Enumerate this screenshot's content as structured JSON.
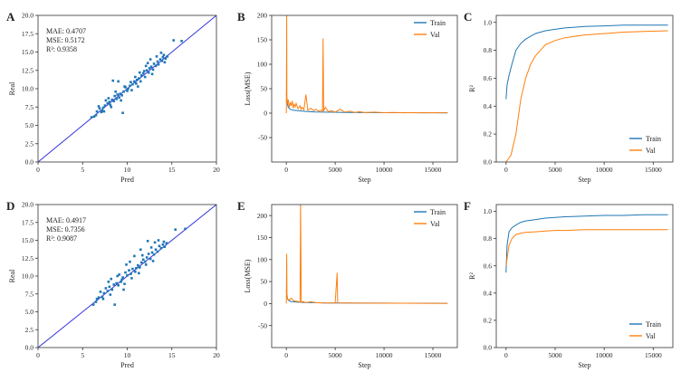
{
  "colors": {
    "train": "#1f77b4",
    "val": "#ff7f0e",
    "fit_line": "#3333dd",
    "points": "#1f77b4"
  },
  "chart_data": [
    {
      "panel": "A",
      "type": "scatter",
      "xlabel": "Pred",
      "ylabel": "Real",
      "xlim": [
        0,
        20
      ],
      "ylim": [
        0,
        20
      ],
      "xticks": [
        0,
        5,
        10,
        15,
        20
      ],
      "yticks": [
        0.0,
        2.5,
        5.0,
        7.5,
        10.0,
        12.5,
        15.0,
        17.5,
        20.0
      ],
      "ytick_labels": [
        "0.0",
        "2.5",
        "5.0",
        "7.5",
        "10.0",
        "12.5",
        "15.0",
        "17.5",
        "20.0"
      ],
      "stats": [
        "MAE: 0.4707",
        "MSE: 0.5172",
        "R²: 0.9358"
      ],
      "fit_line": [
        [
          0,
          0
        ],
        [
          20,
          20
        ]
      ],
      "points": [
        [
          6.0,
          6.1
        ],
        [
          6.3,
          6.2
        ],
        [
          6.6,
          6.9
        ],
        [
          6.9,
          7.3
        ],
        [
          7.1,
          6.8
        ],
        [
          7.3,
          7.4
        ],
        [
          7.5,
          7.7
        ],
        [
          7.6,
          8.4
        ],
        [
          7.8,
          8.0
        ],
        [
          8.0,
          8.2
        ],
        [
          8.1,
          7.8
        ],
        [
          8.3,
          8.5
        ],
        [
          8.4,
          11.1
        ],
        [
          8.5,
          8.3
        ],
        [
          8.6,
          9.0
        ],
        [
          8.8,
          8.6
        ],
        [
          9.0,
          11.0
        ],
        [
          9.1,
          8.8
        ],
        [
          9.2,
          9.3
        ],
        [
          9.4,
          9.1
        ],
        [
          9.5,
          6.7
        ],
        [
          9.6,
          9.6
        ],
        [
          9.8,
          10.2
        ],
        [
          10.0,
          9.7
        ],
        [
          10.1,
          10.0
        ],
        [
          10.3,
          10.4
        ],
        [
          10.5,
          9.8
        ],
        [
          10.6,
          10.6
        ],
        [
          10.8,
          11.0
        ],
        [
          11.0,
          10.7
        ],
        [
          11.1,
          11.2
        ],
        [
          11.3,
          11.4
        ],
        [
          11.5,
          11.0
        ],
        [
          11.6,
          11.8
        ],
        [
          11.8,
          12.1
        ],
        [
          12.0,
          11.6
        ],
        [
          12.2,
          12.5
        ],
        [
          12.4,
          12.2
        ],
        [
          12.5,
          12.8
        ],
        [
          12.7,
          13.0
        ],
        [
          12.9,
          12.6
        ],
        [
          13.0,
          13.4
        ],
        [
          13.2,
          13.1
        ],
        [
          13.4,
          13.7
        ],
        [
          13.5,
          13.3
        ],
        [
          13.7,
          14.0
        ],
        [
          13.9,
          13.8
        ],
        [
          14.0,
          14.3
        ],
        [
          14.1,
          14.6
        ],
        [
          14.3,
          14.1
        ],
        [
          14.5,
          14.4
        ],
        [
          7.2,
          7.0
        ],
        [
          8.9,
          9.2
        ],
        [
          10.4,
          10.9
        ],
        [
          11.9,
          12.4
        ],
        [
          12.6,
          14.0
        ],
        [
          13.8,
          14.9
        ],
        [
          15.2,
          16.6
        ],
        [
          16.1,
          16.5
        ],
        [
          9.3,
          8.4
        ],
        [
          11.2,
          10.3
        ],
        [
          12.8,
          12.0
        ],
        [
          7.9,
          8.7
        ],
        [
          6.8,
          7.6
        ],
        [
          10.9,
          11.6
        ],
        [
          12.3,
          13.5
        ],
        [
          13.3,
          14.4
        ],
        [
          8.7,
          9.6
        ],
        [
          7.4,
          6.9
        ],
        [
          9.7,
          10.3
        ],
        [
          11.4,
          12.2
        ],
        [
          12.1,
          13.1
        ],
        [
          14.2,
          13.6
        ],
        [
          6.5,
          6.4
        ],
        [
          8.2,
          7.5
        ]
      ]
    },
    {
      "panel": "B",
      "type": "line",
      "xlabel": "Step",
      "ylabel": "Loss(MSE)",
      "xlim": [
        -1500,
        17500
      ],
      "ylim": [
        -100,
        200
      ],
      "xticks": [
        0,
        5000,
        10000,
        15000
      ],
      "yticks": [
        -50,
        0,
        50,
        100,
        150,
        200
      ],
      "legend": "top-right",
      "series": [
        {
          "name": "Train",
          "x": [
            0,
            100,
            200,
            400,
            700,
            1200,
            2000,
            3000,
            4000,
            6000,
            8000,
            10000,
            12000,
            14000,
            16500
          ],
          "y": [
            40,
            20,
            12,
            8,
            6,
            5,
            3.5,
            2.5,
            2,
            1.5,
            1.2,
            1,
            0.9,
            0.8,
            0.7
          ]
        },
        {
          "name": "Val",
          "x": [
            0,
            40,
            60,
            120,
            200,
            300,
            400,
            500,
            600,
            700,
            800,
            900,
            1000,
            1200,
            1400,
            1500,
            1600,
            1800,
            2000,
            2200,
            2500,
            2800,
            3000,
            3300,
            3600,
            3700,
            3760,
            3820,
            4000,
            4300,
            4600,
            5000,
            5500,
            6000,
            6500,
            7000,
            7500,
            8000,
            9000,
            10000,
            11000,
            12000,
            13000,
            14000,
            15000,
            16500
          ],
          "y": [
            0,
            210,
            30,
            20,
            28,
            12,
            22,
            15,
            25,
            10,
            18,
            13,
            20,
            9,
            15,
            8,
            12,
            7,
            38,
            6,
            10,
            5,
            8,
            4,
            6,
            3,
            153,
            4,
            12,
            3,
            5,
            2,
            8,
            2,
            4,
            1.5,
            3,
            1.2,
            2,
            1,
            1.5,
            0.8,
            1.2,
            0.7,
            1,
            0.6
          ]
        }
      ]
    },
    {
      "panel": "C",
      "type": "line",
      "xlabel": "Step",
      "ylabel": "R²",
      "xlim": [
        -1000,
        17000
      ],
      "ylim": [
        0,
        1.05
      ],
      "xticks": [
        0,
        5000,
        10000,
        15000
      ],
      "yticks": [
        0.0,
        0.2,
        0.4,
        0.6,
        0.8,
        1.0
      ],
      "ytick_labels": [
        "0.0",
        "0.2",
        "0.4",
        "0.6",
        "0.8",
        "1.0"
      ],
      "legend": "bottom-right",
      "series": [
        {
          "name": "Train",
          "x": [
            0,
            100,
            300,
            600,
            1000,
            1500,
            2000,
            3000,
            4000,
            5000,
            6000,
            8000,
            10000,
            12000,
            14000,
            16500
          ],
          "y": [
            0.45,
            0.55,
            0.62,
            0.7,
            0.8,
            0.85,
            0.88,
            0.92,
            0.94,
            0.95,
            0.96,
            0.97,
            0.975,
            0.98,
            0.98,
            0.98
          ]
        },
        {
          "name": "Val",
          "x": [
            0,
            500,
            1000,
            1500,
            2000,
            2500,
            3000,
            3500,
            4000,
            5000,
            6000,
            7000,
            8000,
            10000,
            12000,
            14000,
            16500
          ],
          "y": [
            0.0,
            0.05,
            0.2,
            0.45,
            0.6,
            0.7,
            0.76,
            0.8,
            0.84,
            0.87,
            0.89,
            0.9,
            0.91,
            0.92,
            0.93,
            0.935,
            0.94
          ]
        }
      ]
    },
    {
      "panel": "D",
      "type": "scatter",
      "xlabel": "Pred",
      "ylabel": "Real",
      "xlim": [
        0,
        20
      ],
      "ylim": [
        0,
        20
      ],
      "xticks": [
        0,
        5,
        10,
        15,
        20
      ],
      "yticks": [
        0.0,
        2.5,
        5.0,
        7.5,
        10.0,
        12.5,
        15.0,
        17.5,
        20.0
      ],
      "ytick_labels": [
        "0.0",
        "2.5",
        "5.0",
        "7.5",
        "10.0",
        "12.5",
        "15.0",
        "17.5",
        "20.0"
      ],
      "stats": [
        "MAE: 0.4917",
        "MSE: 0.7356",
        "R²: 0.9087"
      ],
      "fit_line": [
        [
          0,
          0
        ],
        [
          20,
          20
        ]
      ],
      "points": [
        [
          6.2,
          6.0
        ],
        [
          6.5,
          6.4
        ],
        [
          6.8,
          7.0
        ],
        [
          7.0,
          7.8
        ],
        [
          7.2,
          7.1
        ],
        [
          7.4,
          7.6
        ],
        [
          7.6,
          8.3
        ],
        [
          7.8,
          7.9
        ],
        [
          8.0,
          8.5
        ],
        [
          8.2,
          9.6
        ],
        [
          8.3,
          8.1
        ],
        [
          8.5,
          8.8
        ],
        [
          8.6,
          6.0
        ],
        [
          8.8,
          9.0
        ],
        [
          9.0,
          8.7
        ],
        [
          9.1,
          10.2
        ],
        [
          9.3,
          9.2
        ],
        [
          9.5,
          9.8
        ],
        [
          9.6,
          8.1
        ],
        [
          9.8,
          10.5
        ],
        [
          10.0,
          10.1
        ],
        [
          10.2,
          10.8
        ],
        [
          10.4,
          10.3
        ],
        [
          10.6,
          11.0
        ],
        [
          10.8,
          12.8
        ],
        [
          11.0,
          11.1
        ],
        [
          11.2,
          11.5
        ],
        [
          11.4,
          11.2
        ],
        [
          11.6,
          11.9
        ],
        [
          11.8,
          12.3
        ],
        [
          12.0,
          12.0
        ],
        [
          12.2,
          12.6
        ],
        [
          12.4,
          13.1
        ],
        [
          12.6,
          12.4
        ],
        [
          12.8,
          13.3
        ],
        [
          13.0,
          13.0
        ],
        [
          13.2,
          13.7
        ],
        [
          13.4,
          13.4
        ],
        [
          13.6,
          14.2
        ],
        [
          13.8,
          13.9
        ],
        [
          14.0,
          14.4
        ],
        [
          14.2,
          14.1
        ],
        [
          14.4,
          14.6
        ],
        [
          12.3,
          14.9
        ],
        [
          15.4,
          16.5
        ],
        [
          16.5,
          16.6
        ],
        [
          7.3,
          6.8
        ],
        [
          9.4,
          9.5
        ],
        [
          10.9,
          10.6
        ],
        [
          12.7,
          14.0
        ],
        [
          11.5,
          13.7
        ],
        [
          9.9,
          11.6
        ],
        [
          13.1,
          14.7
        ],
        [
          12.9,
          12.1
        ],
        [
          8.1,
          7.4
        ],
        [
          10.3,
          12.0
        ],
        [
          11.7,
          12.9
        ],
        [
          13.5,
          15.0
        ],
        [
          7.9,
          9.2
        ],
        [
          9.7,
          8.9
        ],
        [
          14.1,
          14.8
        ],
        [
          11.3,
          10.4
        ],
        [
          6.6,
          6.8
        ],
        [
          8.9,
          10.0
        ],
        [
          10.5,
          9.7
        ],
        [
          12.1,
          11.6
        ]
      ]
    },
    {
      "panel": "E",
      "type": "line",
      "xlabel": "Step",
      "ylabel": "Loss(MSE)",
      "xlim": [
        -1500,
        17500
      ],
      "ylim": [
        -100,
        225
      ],
      "xticks": [
        0,
        5000,
        10000,
        15000
      ],
      "yticks": [
        -50,
        0,
        50,
        100,
        150,
        200
      ],
      "legend": "top-right",
      "series": [
        {
          "name": "Train",
          "x": [
            0,
            100,
            200,
            400,
            700,
            1200,
            2000,
            3000,
            4000,
            6000,
            8000,
            10000,
            12000,
            14000,
            16500
          ],
          "y": [
            30,
            12,
            8,
            5,
            4,
            3,
            2.5,
            2,
            1.5,
            1.2,
            1,
            0.9,
            0.8,
            0.7,
            0.6
          ]
        },
        {
          "name": "Val",
          "x": [
            0,
            40,
            70,
            150,
            300,
            500,
            800,
            1100,
            1300,
            1400,
            1460,
            1520,
            1700,
            2000,
            2500,
            3000,
            4000,
            5000,
            5200,
            5260,
            5320,
            6000,
            7000,
            8000,
            10000,
            12000,
            14000,
            16500
          ],
          "y": [
            0,
            113,
            20,
            10,
            8,
            12,
            6,
            5,
            4,
            3,
            230,
            3,
            5,
            2,
            4,
            2,
            1.5,
            1.5,
            70,
            2,
            1.5,
            1.2,
            1,
            0.9,
            0.8,
            0.7,
            0.6,
            0.6
          ]
        }
      ]
    },
    {
      "panel": "F",
      "type": "line",
      "xlabel": "Step",
      "ylabel": "R²",
      "xlim": [
        -1000,
        17000
      ],
      "ylim": [
        0,
        1.05
      ],
      "xticks": [
        0,
        5000,
        10000,
        15000
      ],
      "yticks": [
        0.0,
        0.2,
        0.4,
        0.6,
        0.8,
        1.0
      ],
      "ytick_labels": [
        "0.0",
        "0.2",
        "0.4",
        "0.6",
        "0.8",
        "1.0"
      ],
      "legend": "bottom-right",
      "series": [
        {
          "name": "Train",
          "x": [
            0,
            100,
            300,
            600,
            1000,
            1500,
            2000,
            3000,
            4000,
            5000,
            6000,
            8000,
            10000,
            12000,
            14000,
            16500
          ],
          "y": [
            0.55,
            0.75,
            0.85,
            0.88,
            0.9,
            0.92,
            0.93,
            0.94,
            0.95,
            0.955,
            0.96,
            0.965,
            0.97,
            0.97,
            0.975,
            0.975
          ]
        },
        {
          "name": "Val",
          "x": [
            0,
            300,
            600,
            1000,
            1500,
            2000,
            3000,
            4000,
            5000,
            6000,
            8000,
            10000,
            12000,
            14000,
            16500
          ],
          "y": [
            0.6,
            0.75,
            0.8,
            0.83,
            0.84,
            0.845,
            0.85,
            0.855,
            0.86,
            0.86,
            0.865,
            0.865,
            0.865,
            0.865,
            0.865
          ]
        }
      ]
    }
  ]
}
